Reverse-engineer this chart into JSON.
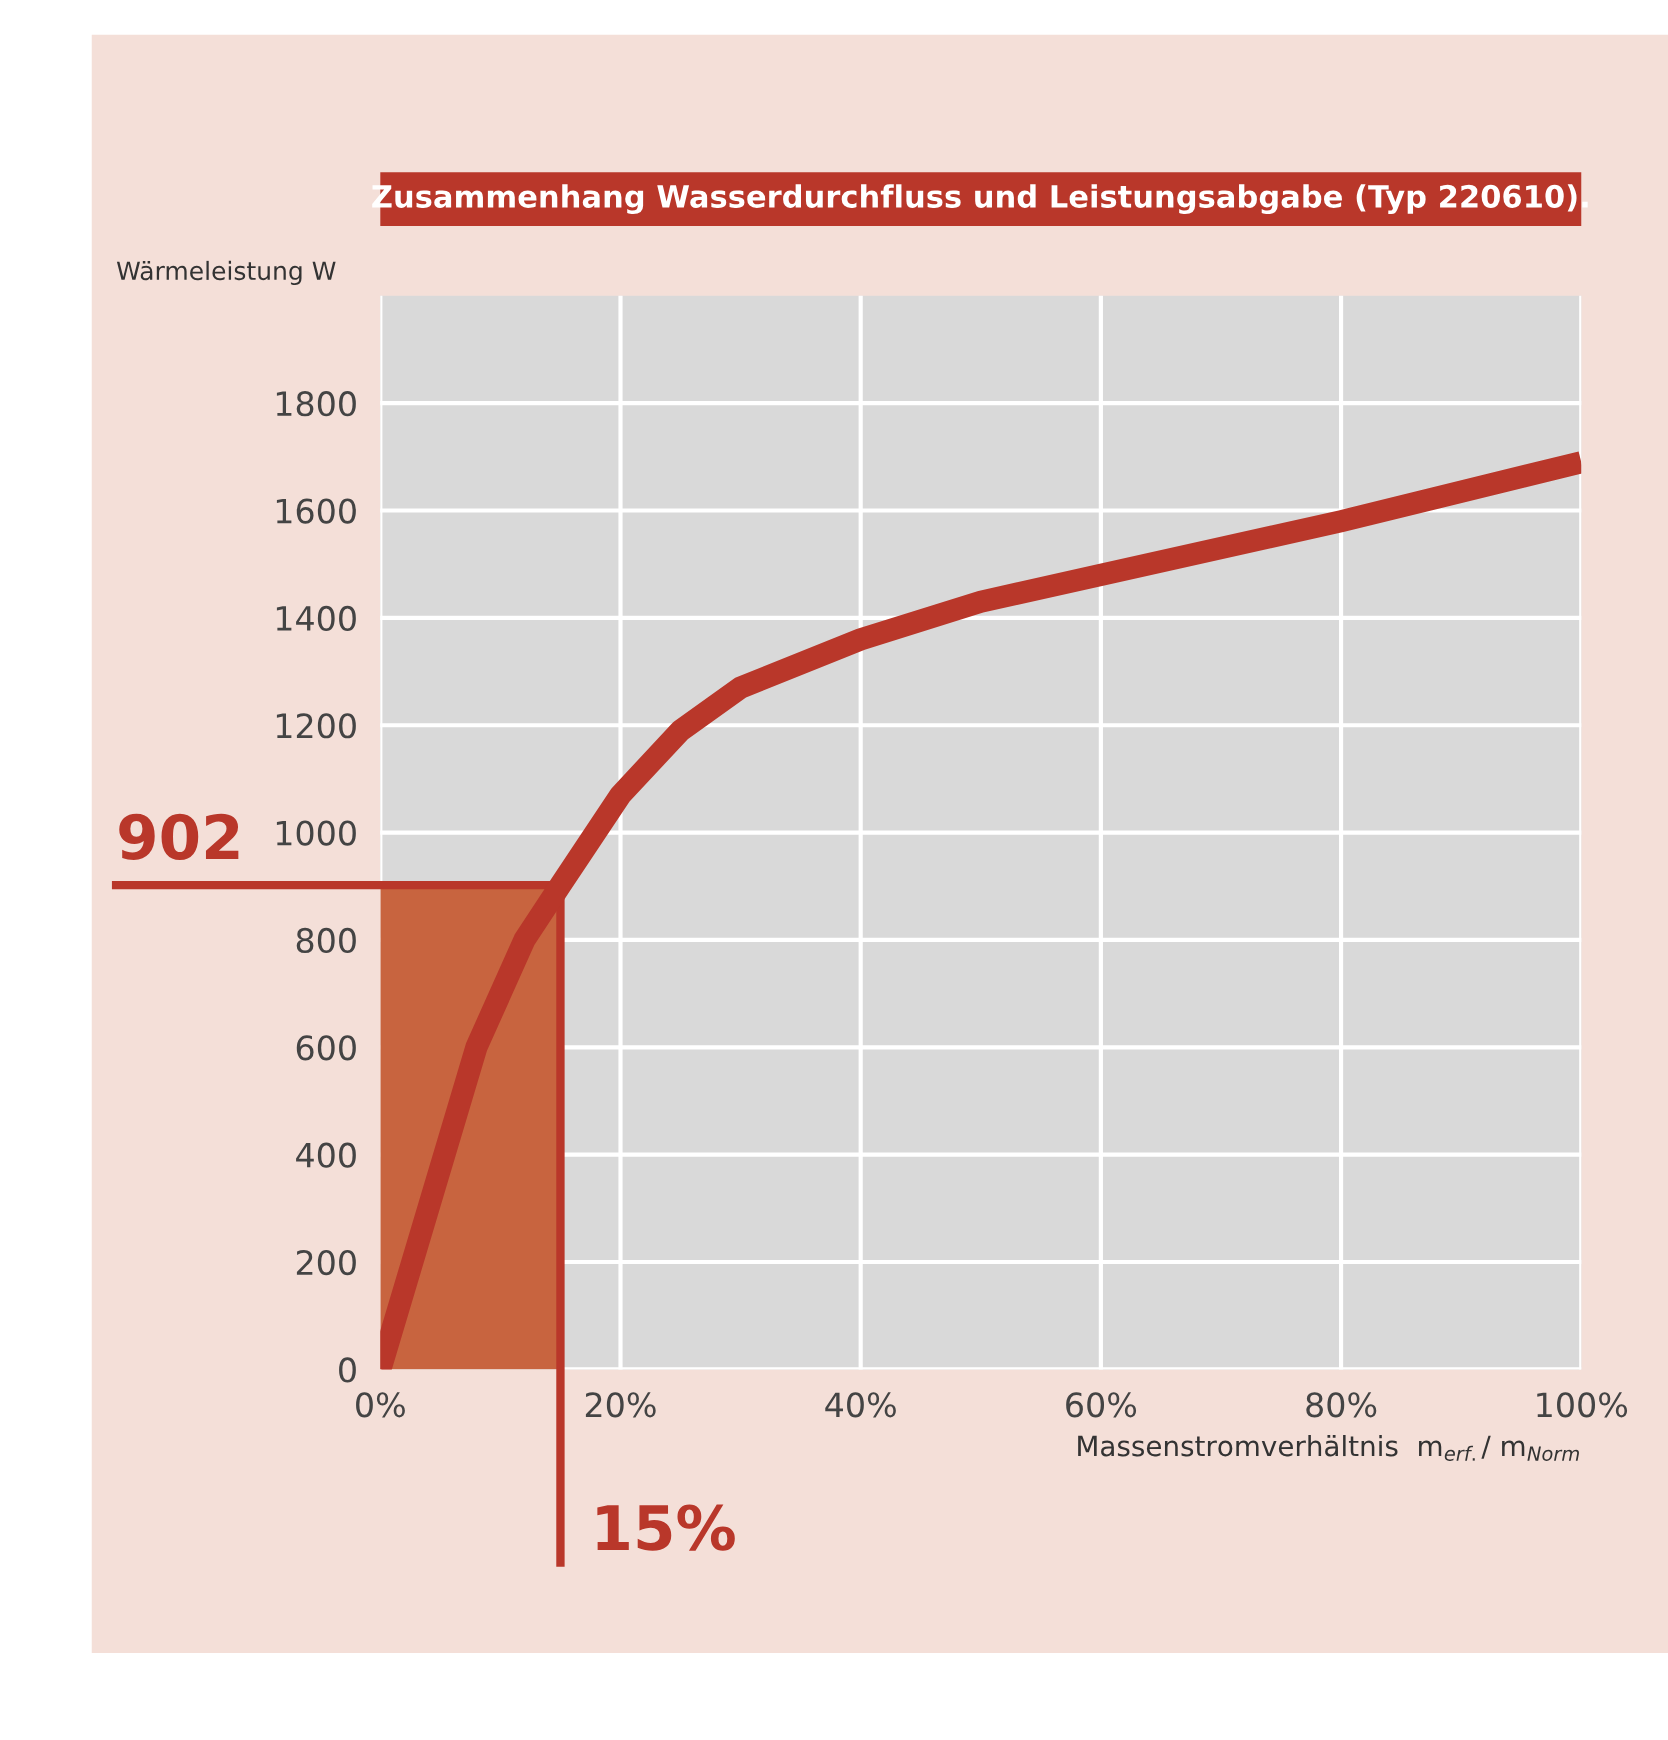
{
  "chart_data": {
    "type": "line",
    "title": "Zusammenhang Wasserdurchfluss und Leistungsabgabe (Typ 220610).",
    "xlabel": "Massenstromverhältnis  m$_{erf.}$/ m$_{Norm}$",
    "ylabel": "Wärmeleistung W",
    "series": [
      {
        "type": "area",
        "color": "#c8643f",
        "x": [
          0,
          15
        ],
        "values": [
          902,
          902
        ]
      },
      {
        "color": "#b9372a",
        "x": [
          0,
          4,
          8,
          12,
          15,
          20,
          25,
          30,
          40,
          50,
          60,
          80,
          100
        ],
        "values": [
          0,
          300,
          600,
          800,
          902,
          1070,
          1190,
          1270,
          1360,
          1430,
          1480,
          1580,
          1690
        ]
      }
    ],
    "xlim": [
      0,
      100
    ],
    "ylim": [
      0,
      2000
    ],
    "xticks": [
      {
        "value": 0,
        "label": "0%"
      },
      {
        "value": 20,
        "label": "20%"
      },
      {
        "value": 40,
        "label": "40%"
      },
      {
        "value": 60,
        "label": "60%"
      },
      {
        "value": 80,
        "label": "80%"
      },
      {
        "value": 100,
        "label": "100%"
      }
    ],
    "yticks": [
      0,
      200,
      400,
      600,
      800,
      1000,
      1200,
      1400,
      1600,
      1800
    ],
    "ref_lines": [
      {
        "axis": "y",
        "value": 902,
        "label": "902",
        "color": "#b9372a"
      },
      {
        "axis": "x",
        "value": 15,
        "label": "15%",
        "color": "#b9372a"
      }
    ],
    "grid": true
  }
}
